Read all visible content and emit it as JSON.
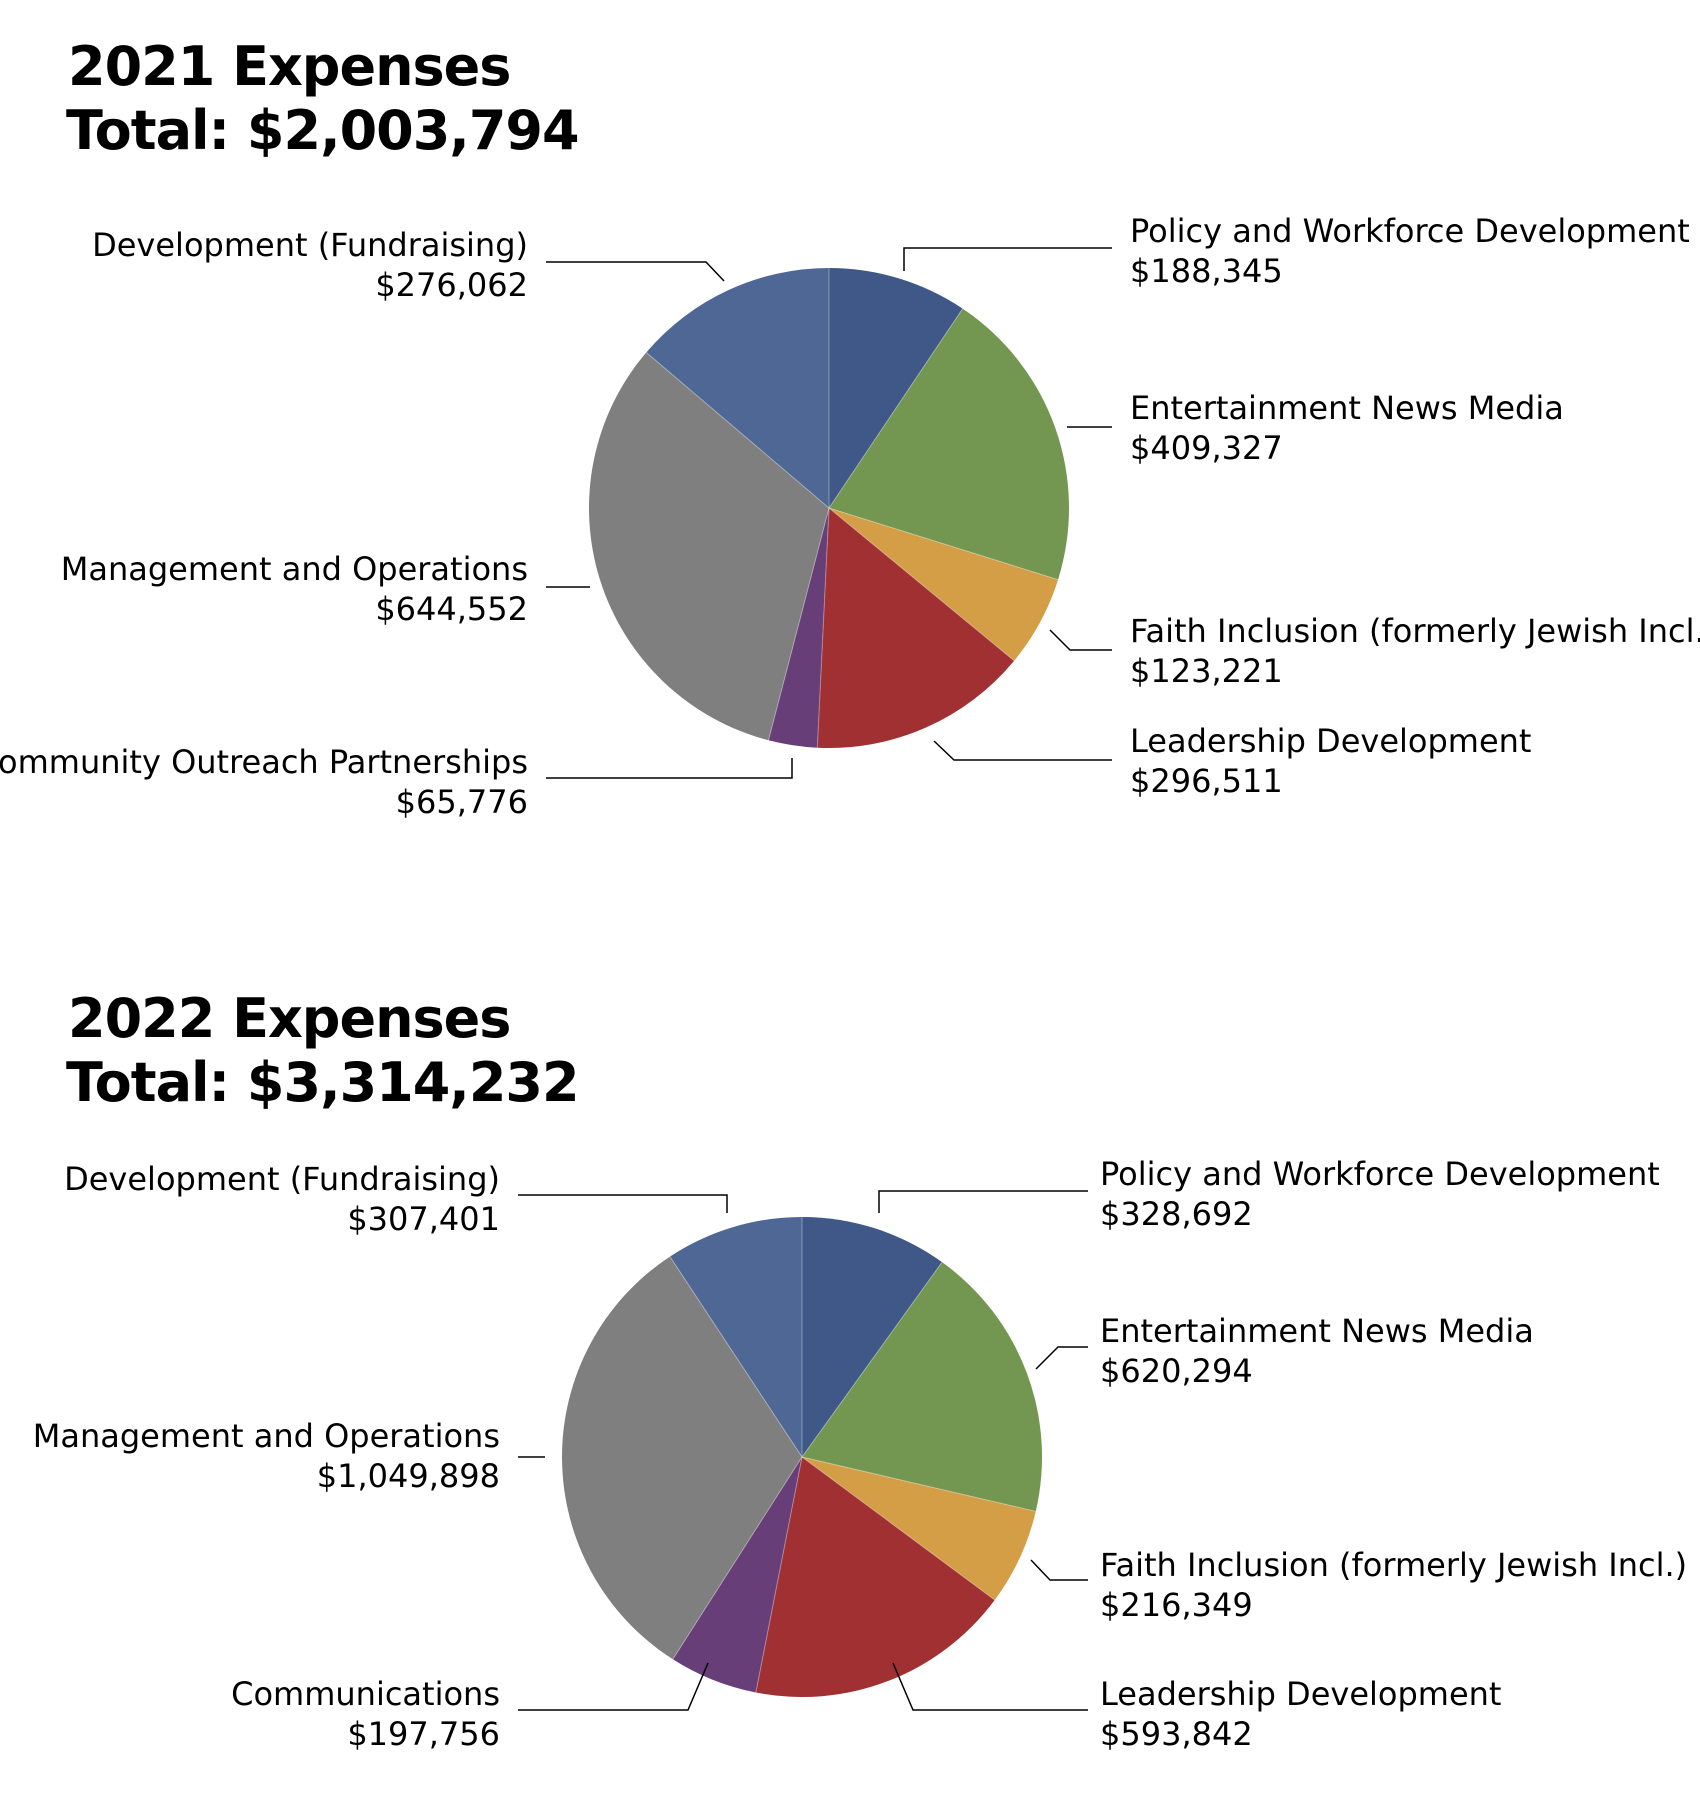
{
  "charts": [
    {
      "title": "2021 Expenses",
      "total": "Total: $2,003,794"
    },
    {
      "title": "2022 Expenses",
      "total": "Total: $3,314,232"
    }
  ],
  "colors": {
    "policy": "#3f5887",
    "entertainment": "#739750",
    "faith": "#d39e45",
    "leadership": "#a13033",
    "community": "#673e77",
    "management": "#7f7f7f",
    "development": "#4f6794",
    "leader_line": "#000000"
  },
  "chart_data": [
    {
      "type": "pie",
      "title": "2021 Expenses",
      "subtitle": "Total: $2,003,794",
      "start": "12 o'clock, clockwise",
      "slices": [
        {
          "label": "Policy and Workforce Development",
          "value": 188345,
          "value_label": "$188,345",
          "color": "#3f5887",
          "label_side": "right"
        },
        {
          "label": "Entertainment News Media",
          "value": 409327,
          "value_label": "$409,327",
          "color": "#739750",
          "label_side": "right"
        },
        {
          "label": "Faith Inclusion (formerly Jewish Incl.)",
          "value": 123221,
          "value_label": "$123,221",
          "color": "#d39e45",
          "label_side": "right"
        },
        {
          "label": "Leadership Development",
          "value": 296511,
          "value_label": "$296,511",
          "color": "#a13033",
          "label_side": "right"
        },
        {
          "label": "Community Outreach Partnerships",
          "value": 65776,
          "value_label": "$65,776",
          "color": "#673e77",
          "label_side": "left"
        },
        {
          "label": "Management and Operations",
          "value": 644552,
          "value_label": "$644,552",
          "color": "#7f7f7f",
          "label_side": "left"
        },
        {
          "label": "Development (Fundraising)",
          "value": 276062,
          "value_label": "$276,062",
          "color": "#4f6794",
          "label_side": "left"
        }
      ]
    },
    {
      "type": "pie",
      "title": "2022 Expenses",
      "subtitle": "Total: $3,314,232",
      "start": "12 o'clock, clockwise",
      "slices": [
        {
          "label": "Policy and Workforce Development",
          "value": 328692,
          "value_label": "$328,692",
          "color": "#3f5887",
          "label_side": "right"
        },
        {
          "label": "Entertainment News Media",
          "value": 620294,
          "value_label": "$620,294",
          "color": "#739750",
          "label_side": "right"
        },
        {
          "label": "Faith Inclusion (formerly Jewish Incl.)",
          "value": 216349,
          "value_label": "$216,349",
          "color": "#d39e45",
          "label_side": "right"
        },
        {
          "label": "Leadership Development",
          "value": 593842,
          "value_label": "$593,842",
          "color": "#a13033",
          "label_side": "right"
        },
        {
          "label": "Communications",
          "value": 197756,
          "value_label": "$197,756",
          "color": "#673e77",
          "label_side": "left"
        },
        {
          "label": "Management and Operations",
          "value": 1049898,
          "value_label": "$1,049,898",
          "color": "#7f7f7f",
          "label_side": "left"
        },
        {
          "label": "Development (Fundraising)",
          "value": 307401,
          "value_label": "$307,401",
          "color": "#4f6794",
          "label_side": "left"
        }
      ]
    }
  ]
}
